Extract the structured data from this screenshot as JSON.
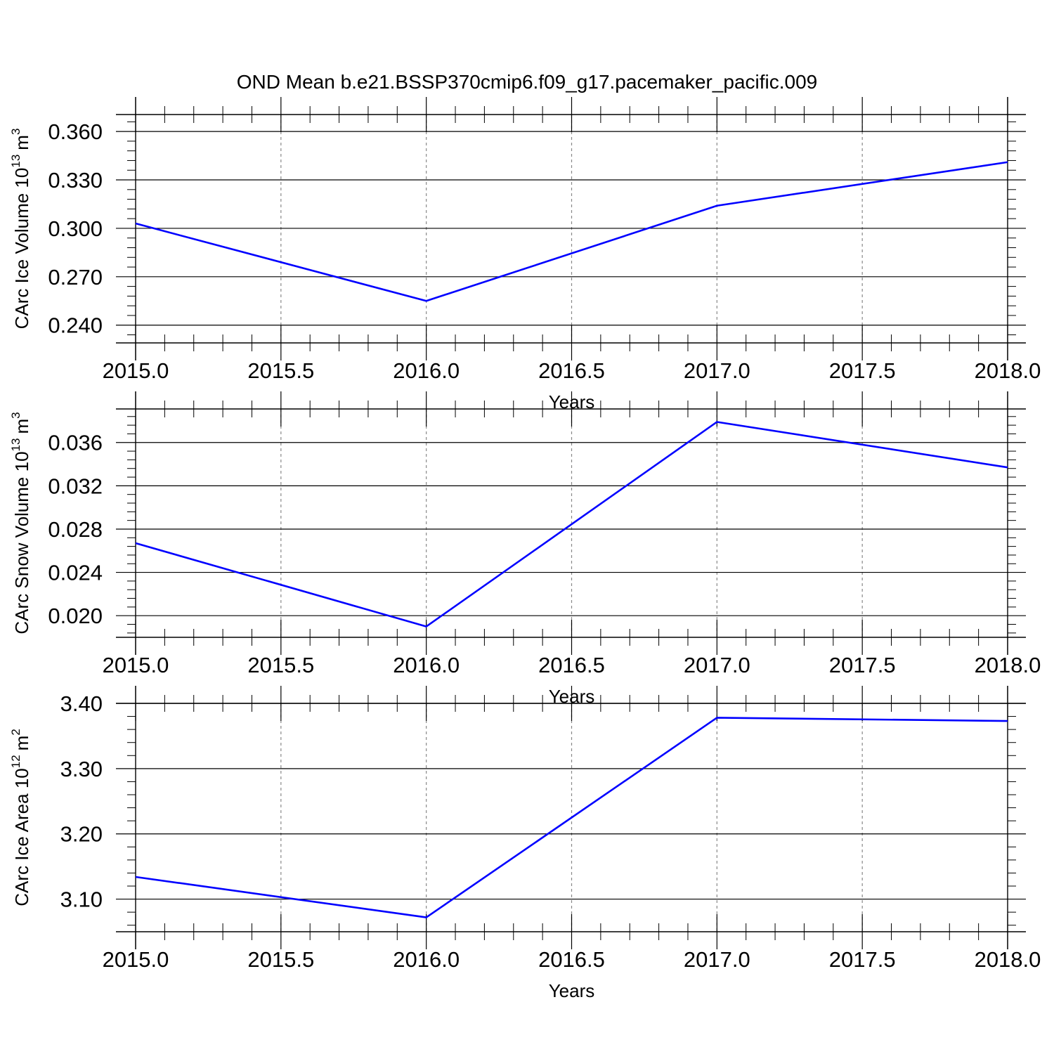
{
  "figure_title": "OND Mean b.e21.BSSP370cmip6.f09_g17.pacemaker_pacific.009",
  "colors": {
    "line": "#0000ff",
    "axis": "#000000",
    "grid": "#888888"
  },
  "chart_data": [
    {
      "type": "line",
      "title": "OND Mean b.e21.BSSP370cmip6.f09_g17.pacemaker_pacific.009",
      "xlabel": "Years",
      "ylabel": {
        "text": "CArc Ice Volume 10",
        "exp": "13",
        "unit": "m",
        "unit_exp": "3"
      },
      "x": [
        2015,
        2016,
        2017,
        2018
      ],
      "series": [
        {
          "values": [
            0.303,
            0.255,
            0.314,
            0.341
          ]
        }
      ],
      "xlim": [
        2015.0,
        2018.0
      ],
      "ylim": [
        0.229,
        0.3705
      ],
      "xticks": [
        2015.0,
        2015.5,
        2016.0,
        2016.5,
        2017.0,
        2017.5,
        2018.0
      ],
      "xtick_labels": [
        "2015.0",
        "2015.5",
        "2016.0",
        "2016.5",
        "2017.0",
        "2017.5",
        "2018.0"
      ],
      "yticks": [
        0.24,
        0.27,
        0.3,
        0.33,
        0.36
      ],
      "ytick_labels": [
        "0.240",
        "0.270",
        "0.300",
        "0.330",
        "0.360"
      ],
      "yminor_step": 0.006,
      "grid": "vertical dashed"
    },
    {
      "type": "line",
      "xlabel": "Years",
      "ylabel": {
        "text": "CArc Snow Volume 10",
        "exp": "13",
        "unit": "m",
        "unit_exp": "3"
      },
      "x": [
        2015,
        2016,
        2017,
        2018
      ],
      "series": [
        {
          "values": [
            0.0267,
            0.019,
            0.0379,
            0.0337
          ]
        }
      ],
      "xlim": [
        2015.0,
        2018.0
      ],
      "ylim": [
        0.018,
        0.0391
      ],
      "xticks": [
        2015.0,
        2015.5,
        2016.0,
        2016.5,
        2017.0,
        2017.5,
        2018.0
      ],
      "xtick_labels": [
        "2015.0",
        "2015.5",
        "2016.0",
        "2016.5",
        "2017.0",
        "2017.5",
        "2018.0"
      ],
      "yticks": [
        0.02,
        0.024,
        0.028,
        0.032,
        0.036
      ],
      "ytick_labels": [
        "0.020",
        "0.024",
        "0.028",
        "0.032",
        "0.036"
      ],
      "yminor_step": 0.0008,
      "grid": "vertical dashed"
    },
    {
      "type": "line",
      "xlabel": "Years",
      "ylabel": {
        "text": "CArc Ice Area 10",
        "exp": "12",
        "unit": "m",
        "unit_exp": "2"
      },
      "x": [
        2015,
        2016,
        2017,
        2018
      ],
      "series": [
        {
          "values": [
            3.134,
            3.072,
            3.378,
            3.373
          ]
        }
      ],
      "xlim": [
        2015.0,
        2018.0
      ],
      "ylim": [
        3.05,
        3.4
      ],
      "xticks": [
        2015.0,
        2015.5,
        2016.0,
        2016.5,
        2017.0,
        2017.5,
        2018.0
      ],
      "xtick_labels": [
        "2015.0",
        "2015.5",
        "2016.0",
        "2016.5",
        "2017.0",
        "2017.5",
        "2018.0"
      ],
      "yticks": [
        3.1,
        3.2,
        3.3,
        3.4
      ],
      "ytick_labels": [
        "3.10",
        "3.20",
        "3.30",
        "3.40"
      ],
      "yminor_step": 0.02,
      "grid": "vertical dashed"
    }
  ]
}
